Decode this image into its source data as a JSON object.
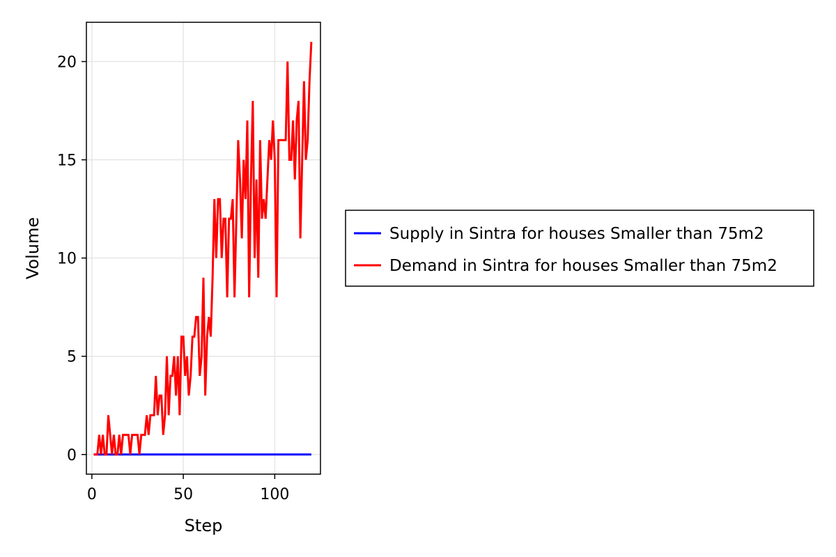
{
  "chart_data": {
    "type": "line",
    "title": "",
    "xlabel": "Step",
    "ylabel": "Volume",
    "xlim": [
      -3,
      125
    ],
    "ylim": [
      -1,
      22
    ],
    "xticks": [
      0,
      50,
      100
    ],
    "yticks": [
      0,
      5,
      10,
      15,
      20
    ],
    "grid": true,
    "legend_position": "right",
    "series": [
      {
        "name": "Supply in Sintra for houses Smaller than 75m2",
        "color": "#0000ff",
        "x": [
          1,
          120
        ],
        "y": [
          0,
          0
        ]
      },
      {
        "name": "Demand in Sintra for houses Smaller than 75m2",
        "color": "#ff0000",
        "x": [
          1,
          2,
          3,
          4,
          5,
          6,
          7,
          8,
          9,
          10,
          11,
          12,
          13,
          14,
          15,
          16,
          17,
          18,
          19,
          20,
          21,
          22,
          23,
          24,
          25,
          26,
          27,
          28,
          29,
          30,
          31,
          32,
          33,
          34,
          35,
          36,
          37,
          38,
          39,
          40,
          41,
          42,
          43,
          44,
          45,
          46,
          47,
          48,
          49,
          50,
          51,
          52,
          53,
          54,
          55,
          56,
          57,
          58,
          59,
          60,
          61,
          62,
          63,
          64,
          65,
          66,
          67,
          68,
          69,
          70,
          71,
          72,
          73,
          74,
          75,
          76,
          77,
          78,
          79,
          80,
          81,
          82,
          83,
          84,
          85,
          86,
          87,
          88,
          89,
          90,
          91,
          92,
          93,
          94,
          95,
          96,
          97,
          98,
          99,
          100,
          101,
          102,
          103,
          104,
          105,
          106,
          107,
          108,
          109,
          110,
          111,
          112,
          113,
          114,
          115,
          116,
          117,
          118,
          119,
          120
        ],
        "y": [
          0,
          0,
          0,
          1,
          0,
          1,
          0,
          0,
          2,
          1,
          0,
          1,
          0,
          0,
          1,
          0,
          1,
          1,
          1,
          1,
          0,
          1,
          1,
          1,
          1,
          0,
          1,
          1,
          1,
          2,
          1,
          2,
          2,
          2,
          4,
          2,
          3,
          3,
          1,
          2,
          5,
          2,
          4,
          4,
          5,
          3,
          5,
          2,
          6,
          6,
          4,
          5,
          3,
          4,
          6,
          6,
          7,
          7,
          4,
          5,
          9,
          3,
          6,
          7,
          6,
          9,
          13,
          10,
          13,
          13,
          10,
          12,
          12,
          8,
          12,
          12,
          13,
          8,
          12,
          16,
          14,
          11,
          15,
          13,
          17,
          8,
          14,
          18,
          10,
          14,
          9,
          16,
          12,
          13,
          12,
          14,
          16,
          15,
          17,
          15,
          8,
          16,
          16,
          16,
          16,
          16,
          20,
          15,
          15,
          17,
          14,
          17,
          18,
          11,
          15,
          19,
          15,
          16,
          19,
          21
        ]
      }
    ]
  }
}
